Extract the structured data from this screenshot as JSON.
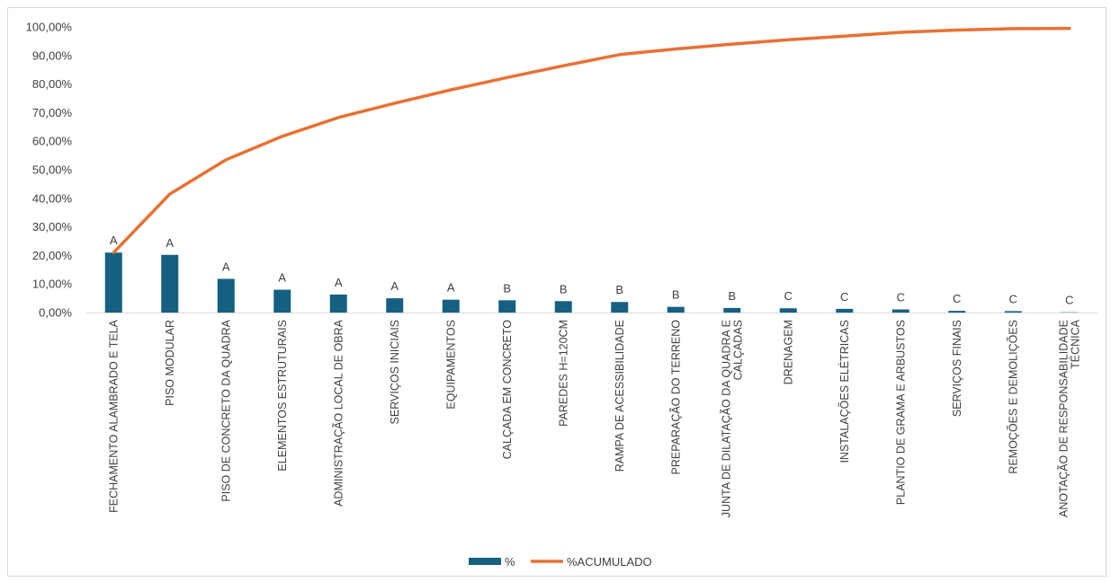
{
  "chart_data": {
    "type": "bar",
    "categories": [
      "FECHAMENTO ALAMBRADO E TELA",
      "PISO MODULAR",
      "PISO DE CONCRETO DA QUADRA",
      "ELEMENTOS ESTRUTURAIS",
      "ADMINISTRAÇÃO LOCAL DE OBRA",
      "SERVIÇOS INICIAIS",
      "EQUIPAMENTOS",
      "CALÇADA EM CONCRETO",
      "PAREDES H=120CM",
      "RAMPA DE ACESSIBILIDADE",
      "PREPARAÇÃO DO TERRENO",
      "JUNTA DE DILATAÇÃO DA QUADRA E CALÇADAS",
      "DRENAGEM",
      "INSTALAÇÕES ELÉTRICAS",
      "PLANTIO DE GRAMA E ARBUSTOS",
      "SERVIÇOS FINAIS",
      "REMOÇÕES E DEMOLIÇÕES",
      "ANOTAÇÃO DE RESPONSABILIDADE TÉCNICA"
    ],
    "category_lines": [
      [
        "FECHAMENTO ALAMBRADO E TELA"
      ],
      [
        "PISO MODULAR"
      ],
      [
        "PISO DE CONCRETO DA QUADRA"
      ],
      [
        "ELEMENTOS ESTRUTURAIS"
      ],
      [
        "ADMINISTRAÇÃO LOCAL DE OBRA"
      ],
      [
        "SERVIÇOS INICIAIS"
      ],
      [
        "EQUIPAMENTOS"
      ],
      [
        "CALÇADA EM CONCRETO"
      ],
      [
        "PAREDES H=120CM"
      ],
      [
        "RAMPA DE ACESSIBILIDADE"
      ],
      [
        "PREPARAÇÃO DO TERRENO"
      ],
      [
        "JUNTA DE DILATAÇÃO DA QUADRA E",
        "CALÇADAS"
      ],
      [
        "DRENAGEM"
      ],
      [
        "INSTALAÇÕES ELÉTRICAS"
      ],
      [
        "PLANTIO DE GRAMA E ARBUSTOS"
      ],
      [
        "SERVIÇOS FINAIS"
      ],
      [
        "REMOÇÕES E DEMOLIÇÕES"
      ],
      [
        "ANOTAÇÃO DE RESPONSABILIDADE",
        "TÉCNICA"
      ]
    ],
    "series": [
      {
        "name": "%",
        "type": "bar",
        "color": "#156082",
        "values": [
          21.0,
          20.2,
          11.8,
          8.0,
          6.3,
          5.0,
          4.5,
          4.3,
          4.0,
          3.7,
          2.0,
          1.6,
          1.5,
          1.3,
          1.1,
          0.6,
          0.5,
          0.1
        ]
      },
      {
        "name": "%ACUMULADO",
        "type": "line",
        "color": "#E97132",
        "values": [
          21.0,
          41.5,
          53.5,
          61.7,
          68.3,
          73.3,
          78.0,
          82.3,
          86.4,
          90.3,
          92.3,
          94.0,
          95.5,
          96.8,
          98.1,
          98.9,
          99.4,
          99.5
        ]
      }
    ],
    "classes": [
      "A",
      "A",
      "A",
      "A",
      "A",
      "A",
      "A",
      "B",
      "B",
      "B",
      "B",
      "B",
      "C",
      "C",
      "C",
      "C",
      "C",
      "C"
    ],
    "yticks": [
      "0,00%",
      "10,00%",
      "20,00%",
      "30,00%",
      "40,00%",
      "50,00%",
      "60,00%",
      "70,00%",
      "80,00%",
      "90,00%",
      "100,00%"
    ],
    "ylim": [
      0,
      100
    ],
    "grid": false,
    "legend_position": "bottom"
  }
}
